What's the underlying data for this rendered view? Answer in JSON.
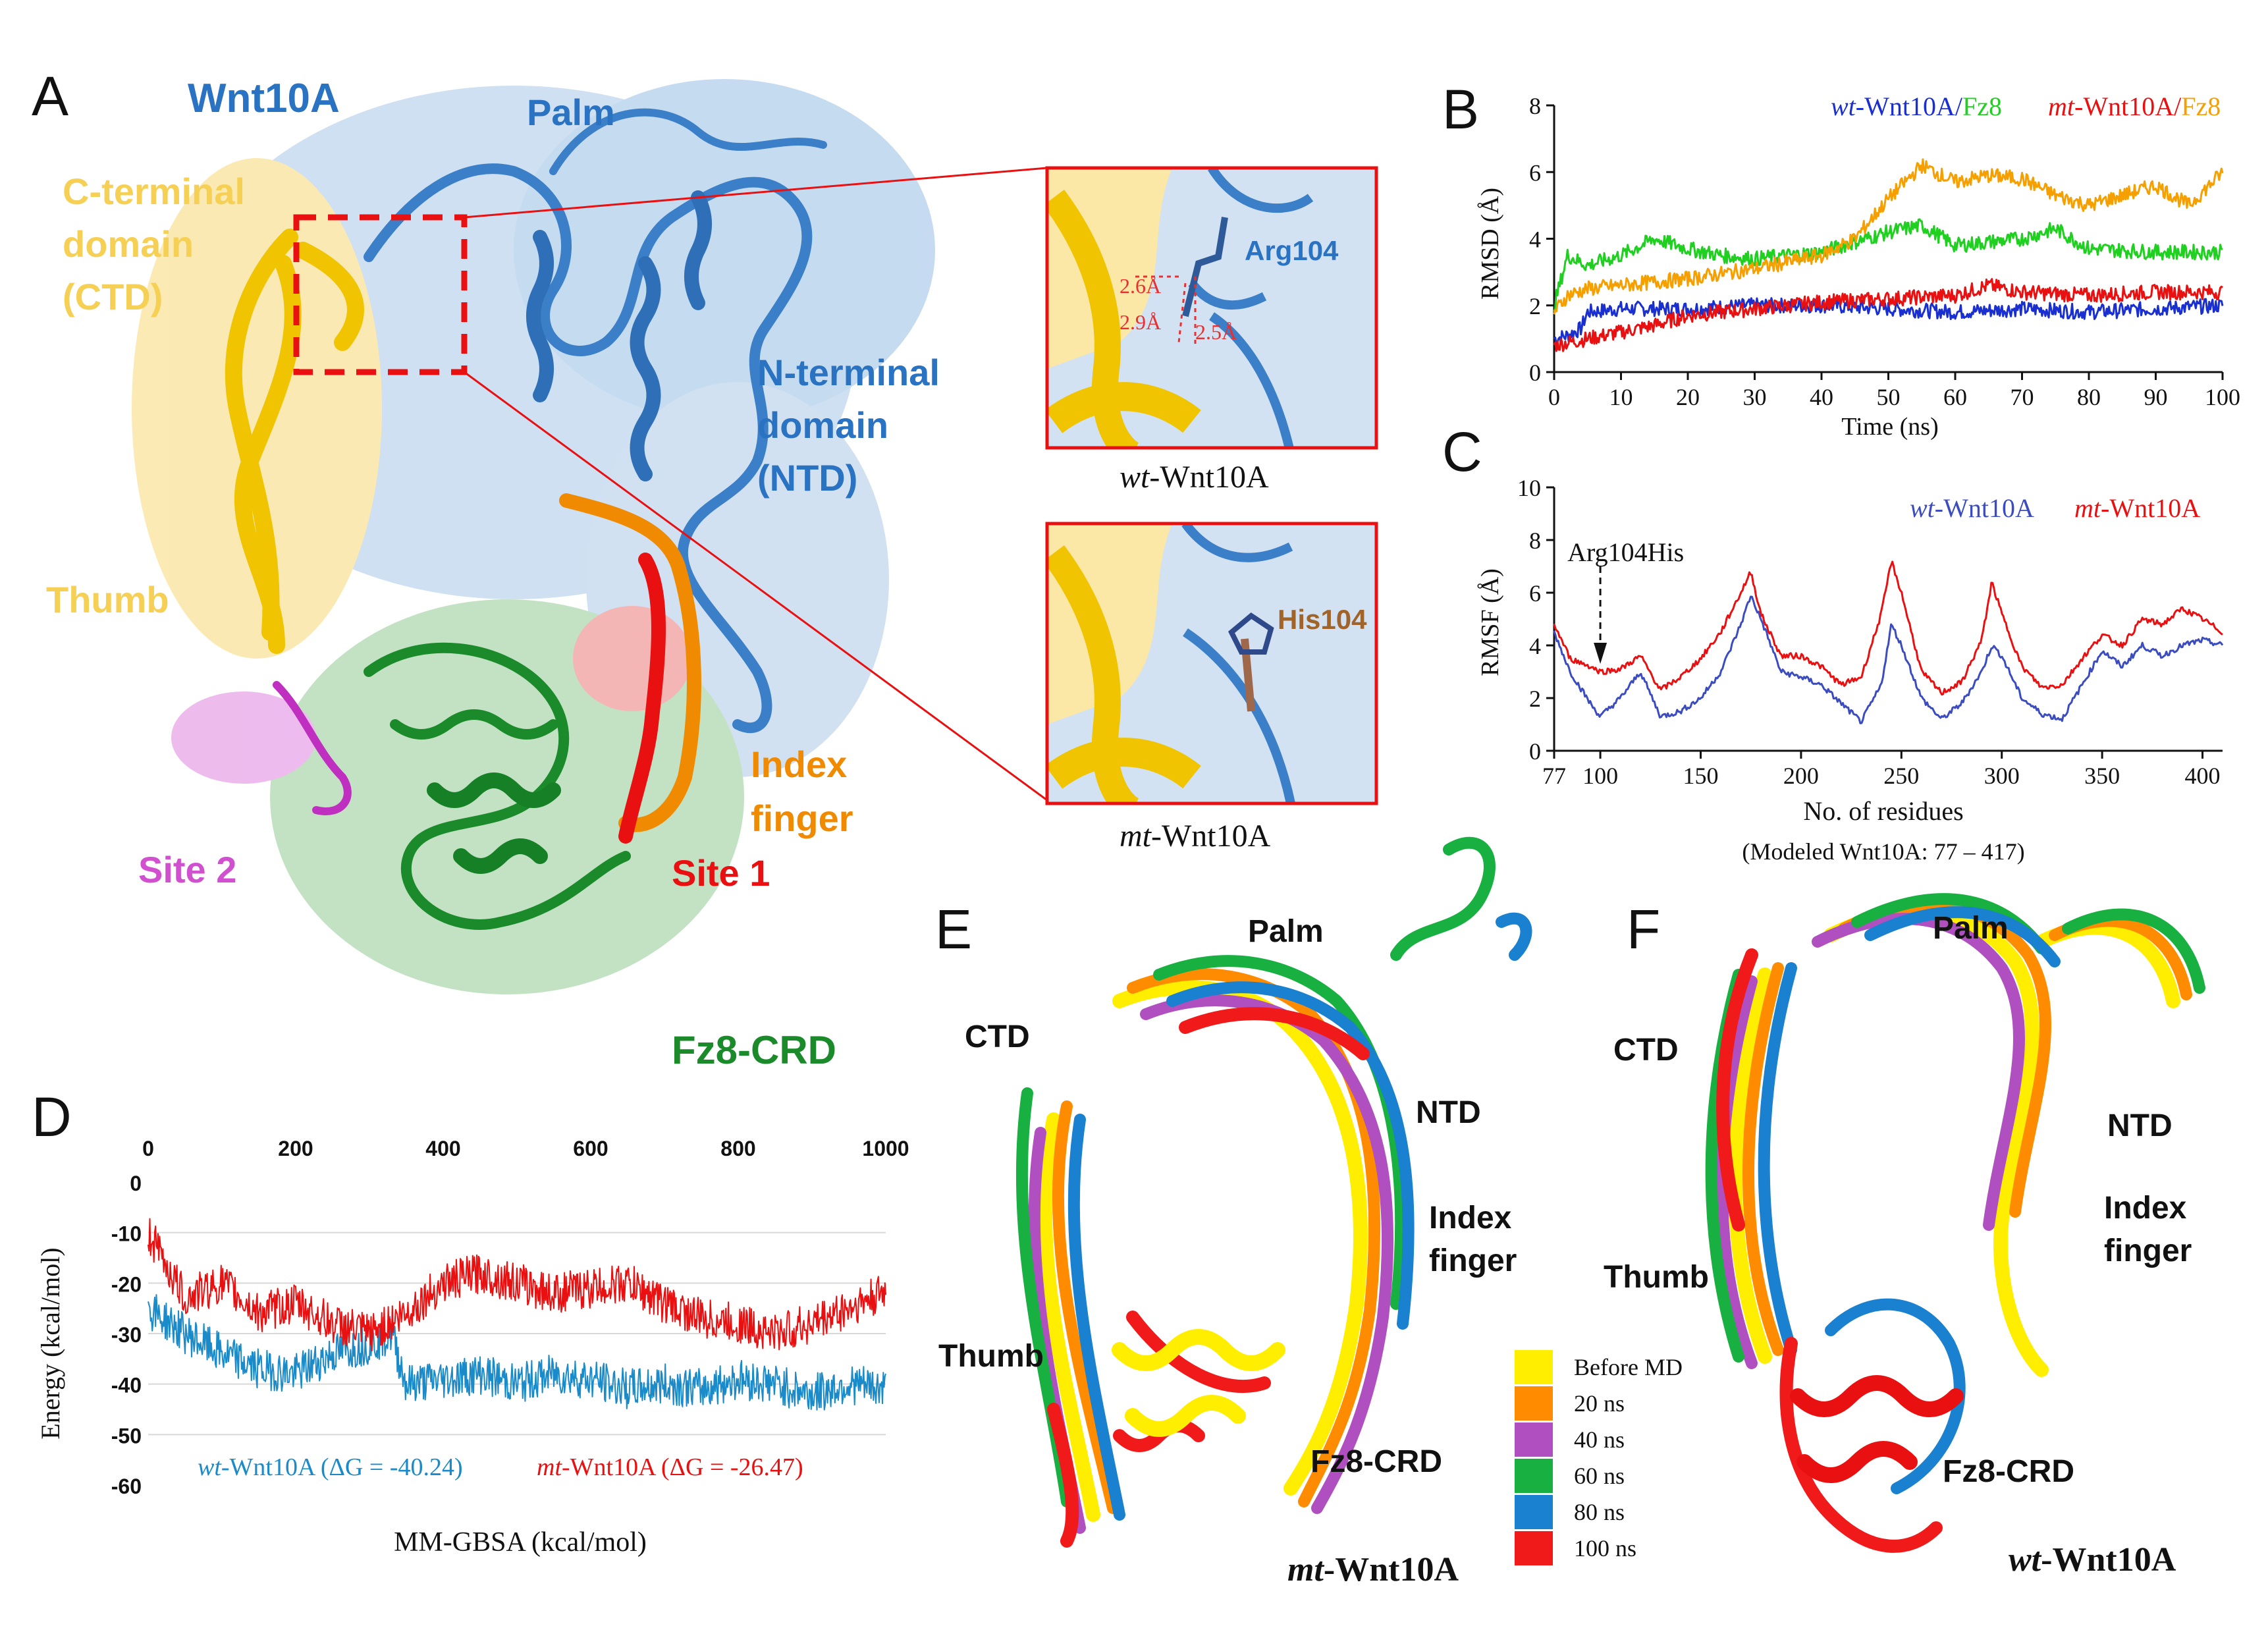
{
  "panels": {
    "A": {
      "letter": "A",
      "labels": {
        "wnt10a": "Wnt10A",
        "palm": "Palm",
        "ctd": "C-terminal\ndomain\n(CTD)",
        "ntd": "N-terminal\ndomain\n(NTD)",
        "thumb": "Thumb",
        "index_finger": "Index\nfinger",
        "site1": "Site 1",
        "site2": "Site 2",
        "fz8crd": "Fz8-CRD"
      },
      "inset_wt": {
        "residue": "Arg104",
        "distances": [
          "2.6Å",
          "2.9Å",
          "2.5Å"
        ],
        "caption_prefix": "wt",
        "caption_suffix": "-Wnt10A"
      },
      "inset_mt": {
        "residue": "His104",
        "caption_prefix": "mt",
        "caption_suffix": "-Wnt10A"
      },
      "colors": {
        "ntd": "#3a7fc8",
        "ctd": "#f0c400",
        "index_finger": "#f08a00",
        "site1": "#e81010",
        "site2": "#d050d0",
        "fz8": "#1a8a2a",
        "label_ctd": "#f6cf55"
      }
    },
    "E": {
      "letter": "E",
      "labels": {
        "palm": "Palm",
        "ctd": "CTD",
        "ntd": "NTD",
        "index_finger": "Index\nfinger",
        "thumb": "Thumb",
        "fz8crd": "Fz8-CRD",
        "name_prefix": "mt",
        "name_suffix": "-Wnt10A"
      }
    },
    "F": {
      "letter": "F",
      "labels": {
        "palm": "Palm",
        "ctd": "CTD",
        "ntd": "NTD",
        "index_finger": "Index\nfinger",
        "thumb": "Thumb",
        "fz8crd": "Fz8-CRD",
        "name_prefix": "wt",
        "name_suffix": "-Wnt10A"
      }
    },
    "legend_md": [
      {
        "label": "Before MD",
        "color": "#ffee00"
      },
      {
        "label": "20 ns",
        "color": "#ff8c00"
      },
      {
        "label": "40 ns",
        "color": "#b050c0"
      },
      {
        "label": "60 ns",
        "color": "#18b040"
      },
      {
        "label": "80 ns",
        "color": "#1a80d0"
      },
      {
        "label": "100 ns",
        "color": "#f01a1a"
      }
    ]
  },
  "chart_data": [
    {
      "id": "B",
      "letter": "B",
      "type": "line",
      "xlabel": "Time (ns)",
      "ylabel": "RMSD (Å)",
      "xlim": [
        0,
        100
      ],
      "ylim": [
        0,
        8
      ],
      "xticks": [
        0,
        10,
        20,
        30,
        40,
        50,
        60,
        70,
        80,
        90,
        100
      ],
      "yticks": [
        0,
        2,
        4,
        6,
        8
      ],
      "legend": [
        {
          "prefix": "wt",
          "mid": "-Wnt10A",
          "sep": "/",
          "partner": "Fz8",
          "color_main": "#1a2fd0",
          "color_partner": "#20d020"
        },
        {
          "prefix": "mt",
          "mid": "-Wnt10A",
          "sep": "/",
          "partner": "Fz8",
          "color_main": "#e81010",
          "color_partner": "#f5a000"
        }
      ],
      "series": [
        {
          "key": "wt-Wnt10A",
          "color": "#1a2fd0",
          "x": [
            0,
            2,
            4,
            5,
            10,
            20,
            30,
            40,
            50,
            60,
            70,
            80,
            90,
            100
          ],
          "y": [
            1.0,
            1.1,
            1.3,
            1.8,
            1.9,
            1.9,
            2.0,
            2.0,
            1.9,
            1.8,
            1.9,
            1.8,
            1.9,
            2.0
          ]
        },
        {
          "key": "mt-Wnt10A",
          "color": "#e81010",
          "x": [
            0,
            5,
            10,
            15,
            20,
            30,
            40,
            50,
            60,
            65,
            70,
            80,
            90,
            100
          ],
          "y": [
            0.8,
            1.0,
            1.2,
            1.4,
            1.7,
            1.9,
            2.1,
            2.2,
            2.3,
            2.6,
            2.4,
            2.3,
            2.4,
            2.4
          ]
        },
        {
          "key": "wt-Fz8",
          "color": "#20d020",
          "x": [
            0,
            2,
            5,
            10,
            15,
            20,
            25,
            30,
            40,
            50,
            55,
            60,
            70,
            75,
            80,
            90,
            100
          ],
          "y": [
            2.0,
            3.5,
            3.2,
            3.5,
            4.0,
            3.7,
            3.5,
            3.4,
            3.6,
            4.2,
            4.4,
            3.8,
            4.0,
            4.3,
            3.7,
            3.6,
            3.6
          ]
        },
        {
          "key": "mt-Fz8",
          "color": "#f5a000",
          "x": [
            0,
            2,
            5,
            10,
            20,
            30,
            40,
            45,
            50,
            55,
            60,
            65,
            70,
            75,
            80,
            85,
            90,
            95,
            100
          ],
          "y": [
            1.8,
            2.3,
            2.5,
            2.6,
            2.8,
            3.1,
            3.5,
            4.0,
            5.2,
            6.2,
            5.7,
            5.9,
            5.8,
            5.3,
            5.0,
            5.3,
            5.6,
            5.0,
            6.0
          ]
        }
      ]
    },
    {
      "id": "C",
      "letter": "C",
      "type": "line",
      "xlabel": "No. of residues",
      "note": "(Modeled Wnt10A: 77 – 417)",
      "ylabel": "RMSF (Å)",
      "xlim": [
        77,
        410
      ],
      "ylim": [
        0,
        10
      ],
      "xticks": [
        77,
        100,
        150,
        200,
        250,
        300,
        350,
        400
      ],
      "yticks": [
        0,
        2,
        4,
        6,
        8,
        10
      ],
      "annotation": {
        "text": "Arg104His",
        "x": 100
      },
      "legend": [
        {
          "prefix": "wt",
          "mid": "-Wnt10A",
          "color": "#3b4cc0"
        },
        {
          "prefix": "mt",
          "mid": "-Wnt10A",
          "color": "#e81010"
        }
      ],
      "series": [
        {
          "key": "wt-Wnt10A",
          "color": "#3b4cc0",
          "x": [
            77,
            85,
            95,
            100,
            110,
            120,
            130,
            140,
            150,
            160,
            170,
            175,
            180,
            190,
            200,
            210,
            220,
            230,
            240,
            245,
            250,
            260,
            270,
            280,
            290,
            295,
            300,
            310,
            320,
            330,
            340,
            350,
            360,
            370,
            380,
            390,
            400,
            410
          ],
          "y": [
            4.5,
            3.0,
            1.8,
            1.3,
            2.0,
            3.0,
            1.3,
            1.5,
            2.0,
            3.0,
            4.8,
            5.9,
            5.0,
            3.0,
            2.8,
            2.5,
            1.8,
            1.1,
            2.5,
            4.8,
            4.0,
            2.0,
            1.2,
            1.8,
            3.0,
            4.0,
            3.6,
            2.0,
            1.4,
            1.2,
            2.5,
            3.8,
            3.2,
            4.0,
            3.6,
            4.0,
            4.2,
            4.0
          ]
        },
        {
          "key": "mt-Wnt10A",
          "color": "#e81010",
          "x": [
            77,
            85,
            95,
            100,
            110,
            120,
            130,
            140,
            150,
            160,
            170,
            175,
            180,
            190,
            200,
            210,
            220,
            230,
            240,
            245,
            250,
            260,
            270,
            280,
            290,
            295,
            300,
            310,
            320,
            330,
            340,
            350,
            360,
            370,
            380,
            390,
            400,
            410
          ],
          "y": [
            4.8,
            3.5,
            3.2,
            3.0,
            3.1,
            3.6,
            2.3,
            2.8,
            3.5,
            4.5,
            6.0,
            6.8,
            5.2,
            3.6,
            3.6,
            3.2,
            2.5,
            2.8,
            5.2,
            7.2,
            6.0,
            3.0,
            2.2,
            2.6,
            4.2,
            6.4,
            5.2,
            3.2,
            2.4,
            2.5,
            3.5,
            4.4,
            4.0,
            5.0,
            4.8,
            5.4,
            5.0,
            4.5
          ]
        }
      ]
    },
    {
      "id": "D",
      "letter": "D",
      "type": "line",
      "xlabel": "MM-GBSA (kcal/mol)",
      "ylabel": "Energy (kcal/mol)",
      "xlim": [
        0,
        1000
      ],
      "ylim": [
        -60,
        0
      ],
      "xticks": [
        0,
        200,
        400,
        600,
        800,
        1000
      ],
      "yticks": [
        0,
        -10,
        -20,
        -30,
        -40,
        -50,
        -60
      ],
      "grid": true,
      "legend": [
        {
          "prefix": "wt",
          "mid": "-Wnt10A (ΔG = -40.24)",
          "color": "#1a8ac8"
        },
        {
          "prefix": "mt",
          "mid": "-Wnt10A (ΔG = -26.47)",
          "color": "#e81010"
        }
      ],
      "series": [
        {
          "key": "wt-Wnt10A",
          "color": "#1a8ac8",
          "x": [
            0,
            50,
            100,
            150,
            200,
            250,
            300,
            330,
            350,
            400,
            450,
            500,
            550,
            600,
            650,
            700,
            750,
            800,
            850,
            900,
            950,
            1000
          ],
          "y": [
            -25,
            -30,
            -34,
            -37,
            -38,
            -34,
            -32,
            -30,
            -40,
            -39,
            -38,
            -40,
            -38,
            -39,
            -41,
            -40,
            -41,
            -39,
            -40,
            -42,
            -40,
            -41
          ]
        },
        {
          "key": "mt-Wnt10A",
          "color": "#e81010",
          "x": [
            0,
            50,
            100,
            150,
            200,
            250,
            300,
            350,
            400,
            450,
            500,
            550,
            600,
            650,
            700,
            750,
            800,
            850,
            900,
            950,
            1000
          ],
          "y": [
            -10,
            -23,
            -20,
            -26,
            -24,
            -28,
            -30,
            -26,
            -20,
            -18,
            -20,
            -22,
            -21,
            -20,
            -24,
            -27,
            -28,
            -30,
            -28,
            -25,
            -22
          ]
        }
      ]
    }
  ]
}
